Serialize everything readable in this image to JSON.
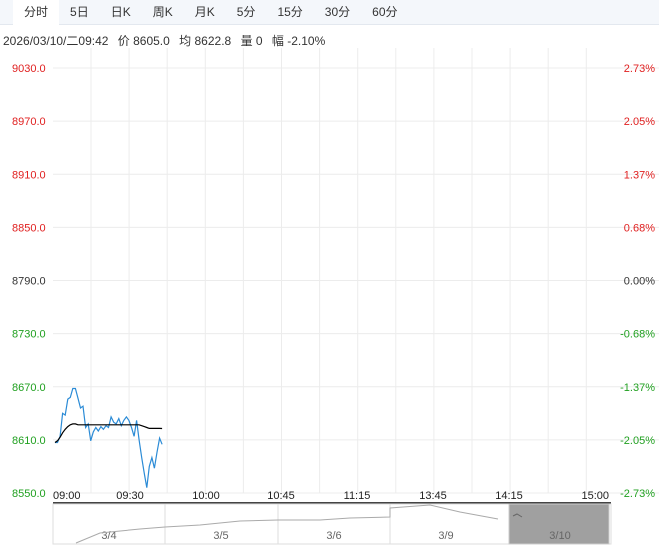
{
  "tabs": [
    {
      "label": "分时",
      "active": true
    },
    {
      "label": "5日"
    },
    {
      "label": "日K"
    },
    {
      "label": "周K"
    },
    {
      "label": "月K"
    },
    {
      "label": "5分"
    },
    {
      "label": "15分"
    },
    {
      "label": "30分"
    },
    {
      "label": "60分"
    }
  ],
  "info": {
    "datetime": "2026/03/10/二09:42",
    "price": "价 8605.0",
    "avg": "均 8622.8",
    "volume": "量 0",
    "change": "幅 -2.10%"
  },
  "colors": {
    "up": "#e02020",
    "down": "#20a020",
    "flat": "#333333",
    "price_line": "#2b8bd6",
    "avg_line": "#000000"
  },
  "chart_data": {
    "type": "line",
    "prev_close": 8790,
    "ylim": [
      8550,
      9030
    ],
    "y_ticks": [
      "9030.0",
      "8970.0",
      "8910.0",
      "8850.0",
      "8790.0",
      "8730.0",
      "8670.0",
      "8610.0",
      "8550.0"
    ],
    "y_pct_ticks": [
      "2.73%",
      "2.05%",
      "1.37%",
      "0.68%",
      "0.00%",
      "-0.68%",
      "-1.37%",
      "-2.05%",
      "-2.73%"
    ],
    "x_ticks": [
      "09:00",
      "09:30",
      "10:00",
      "10:45",
      "11:15",
      "13:45",
      "14:15",
      "15:00"
    ],
    "grid": true,
    "series": [
      {
        "values": [
          8607,
          8607,
          8614,
          8640,
          8638,
          8656,
          8658,
          8668,
          8668,
          8657,
          8646,
          8648,
          8624,
          8628,
          8609,
          8619,
          8624,
          8620,
          8625,
          8622,
          8626,
          8624,
          8636,
          8630,
          8628,
          8634,
          8626,
          8632,
          8636,
          8632,
          8624,
          8614,
          8632,
          8610,
          8590,
          8572,
          8556,
          8580,
          8590,
          8578,
          8596,
          8612,
          8605
        ]
      },
      {
        "values": [
          8607,
          8609,
          8613,
          8618,
          8622,
          8625,
          8627,
          8628,
          8628,
          8627,
          8627,
          8627,
          8627,
          8627,
          8627,
          8627,
          8627,
          8627,
          8627,
          8627,
          8627,
          8627,
          8627,
          8627,
          8627,
          8627,
          8627,
          8627,
          8627,
          8627,
          8627,
          8627,
          8627,
          8627,
          8626,
          8625,
          8624,
          8623,
          8623,
          8623,
          8623,
          8623,
          8622.8
        ]
      }
    ],
    "navigator": {
      "dates": [
        "3/4",
        "3/5",
        "3/6",
        "3/9",
        "3/10"
      ],
      "selected": "3/10"
    }
  }
}
